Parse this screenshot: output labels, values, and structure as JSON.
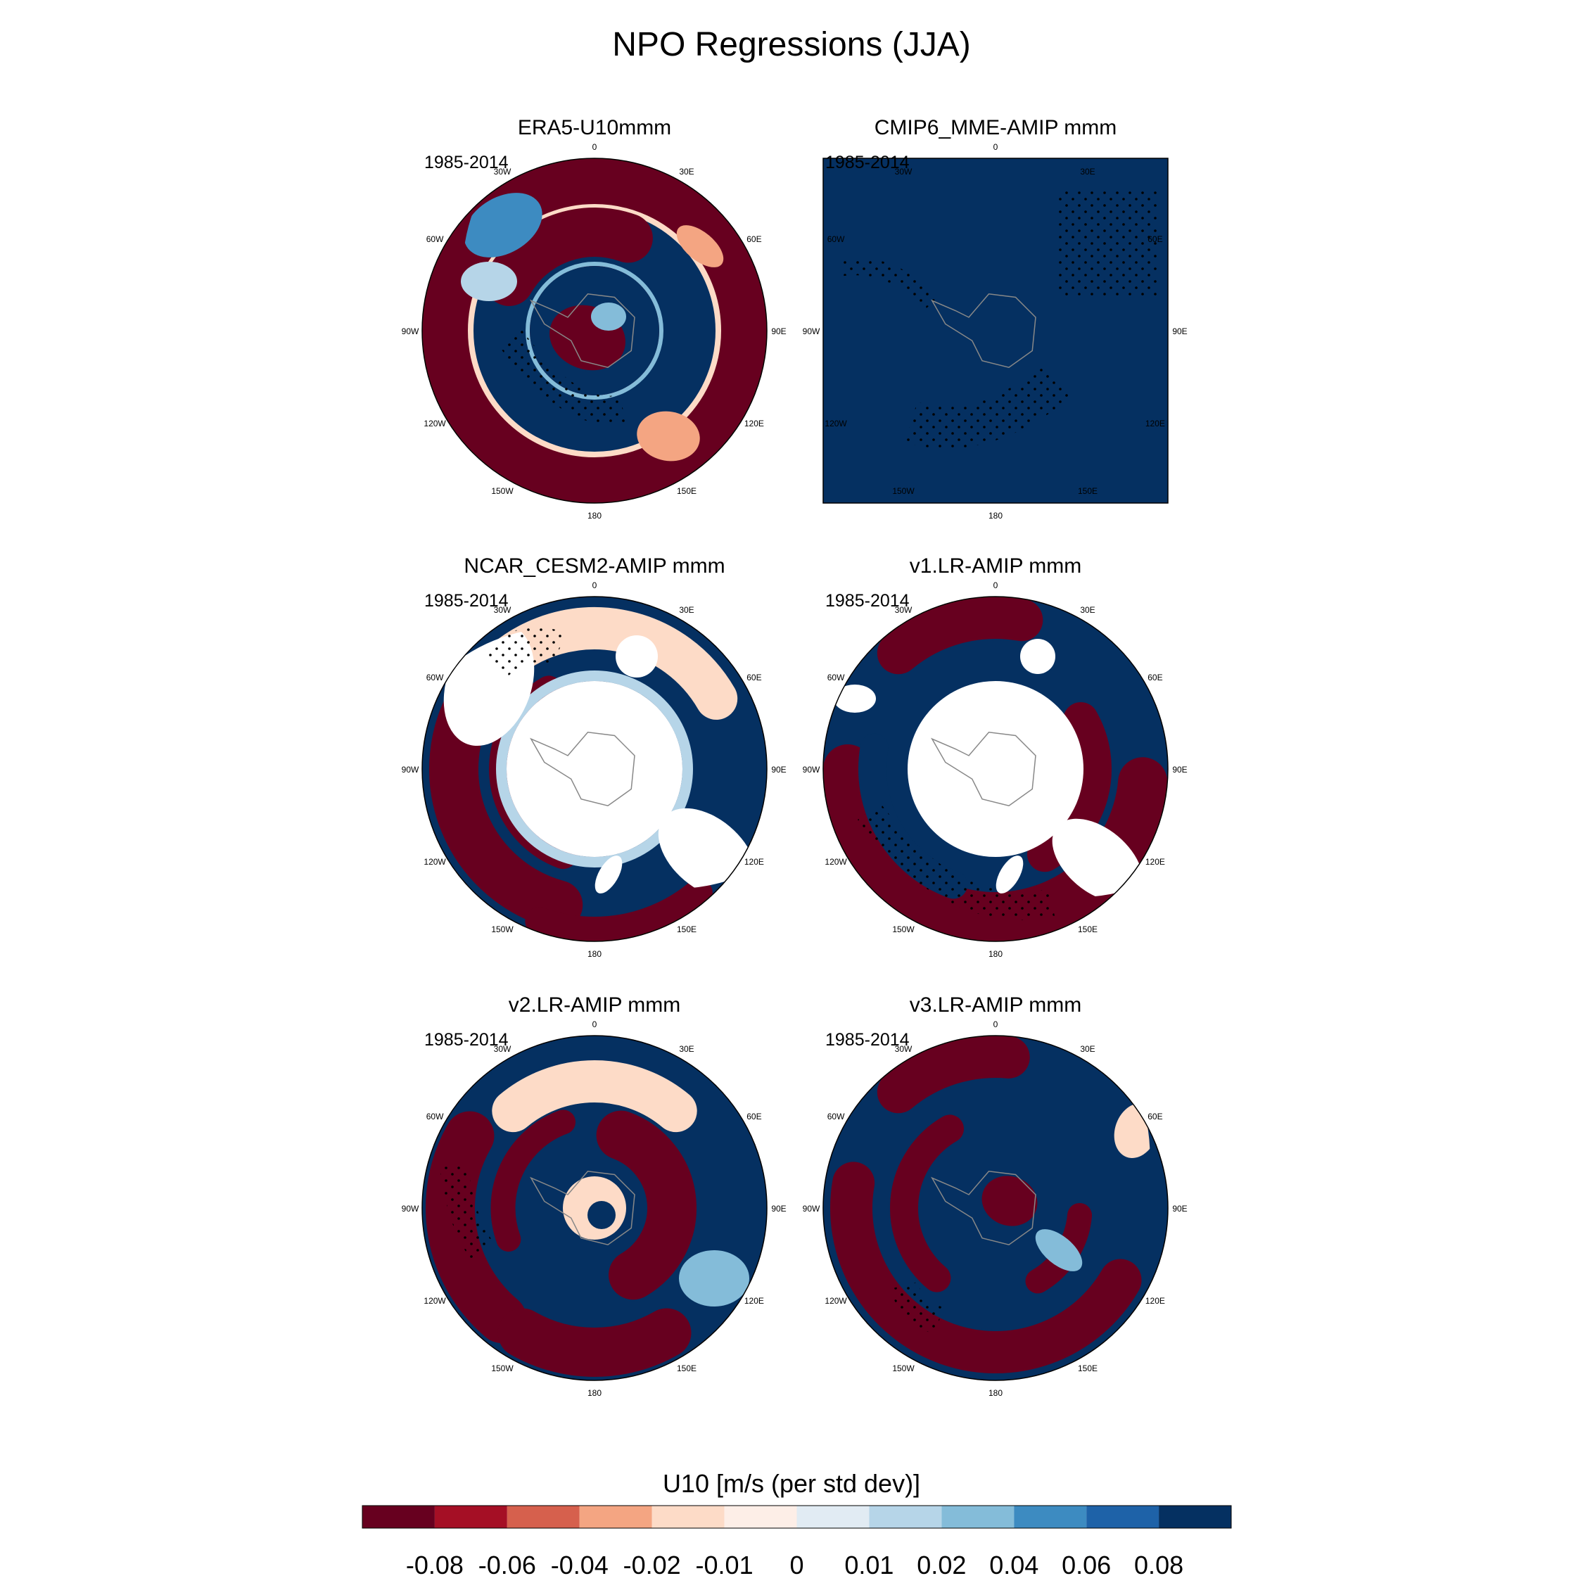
{
  "title": "NPO Regressions (JJA)",
  "panels": [
    {
      "title": "ERA5-U10mmm",
      "period": "1985-2014",
      "shape": "polar",
      "mask": "none",
      "pattern": "era5"
    },
    {
      "title": "CMIP6_MME-AMIP  mmm",
      "period": "1985-2014",
      "shape": "square",
      "mask": "none",
      "pattern": "uniform"
    },
    {
      "title": "NCAR_CESM2-AMIP  mmm",
      "period": "1985-2014",
      "shape": "polar",
      "mask": "inner",
      "pattern": "cesm2"
    },
    {
      "title": "v1.LR-AMIP  mmm",
      "period": "1985-2014",
      "shape": "polar",
      "mask": "inner",
      "pattern": "v1"
    },
    {
      "title": "v2.LR-AMIP  mmm",
      "period": "1985-2014",
      "shape": "polar",
      "mask": "none",
      "pattern": "v2"
    },
    {
      "title": "v3.LR-AMIP  mmm",
      "period": "1985-2014",
      "shape": "polar",
      "mask": "none",
      "pattern": "v3"
    }
  ],
  "longitude_labels": [
    "0",
    "30E",
    "60E",
    "90E",
    "120E",
    "150E",
    "180",
    "150W",
    "120W",
    "90W",
    "60W",
    "30W"
  ],
  "chart_data": {
    "type": "heatmap",
    "projection": "south polar stereographic",
    "variable": "U10",
    "colorbar": {
      "title": "U10 [m/s (per std dev)]",
      "levels": [
        "-0.08",
        "-0.06",
        "-0.04",
        "-0.02",
        "-0.01",
        "0",
        "0.01",
        "0.02",
        "0.04",
        "0.06",
        "0.08"
      ],
      "colors": [
        "#67001f",
        "#a50f25",
        "#d6604d",
        "#f4a582",
        "#fddbc7",
        "#fdeee7",
        "#e1ebf3",
        "#b6d5e8",
        "#84bcd9",
        "#3d8bc1",
        "#1e62a8",
        "#053061"
      ]
    }
  },
  "colors": {
    "land_mask": "#ffffff",
    "coast": "#888888",
    "stipple": "#000000"
  }
}
